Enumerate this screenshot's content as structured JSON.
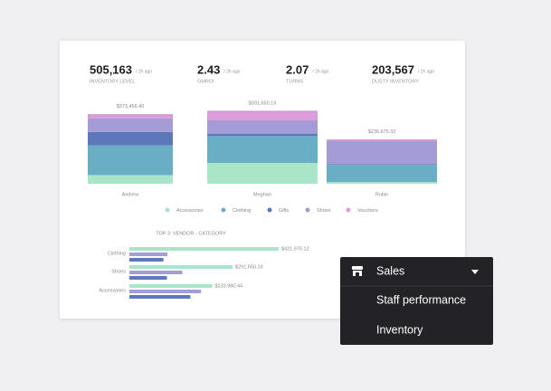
{
  "kpis": [
    {
      "value": "505,163",
      "time": "/ 2h ago",
      "label": "INVENTORY LEVEL"
    },
    {
      "value": "2.43",
      "time": "/ 2h ago",
      "label": "GMROI"
    },
    {
      "value": "2.07",
      "time": "/ 2h ago",
      "label": "TURNS"
    },
    {
      "value": "203,567",
      "time": "/ 2h ago",
      "label": "DUSTY INVENTORY"
    }
  ],
  "chart_data": [
    {
      "type": "stacked-bar",
      "categories": [
        "Andrew",
        "Meghan",
        "Robin"
      ],
      "totals": [
        373456.4,
        391650.19,
        236675.32
      ],
      "total_labels": [
        "$373,456.40",
        "$391,650.19",
        "$236,675.32"
      ],
      "series": [
        {
          "name": "Accessories",
          "color": "#a9e6c9",
          "values": [
            46700,
            112600,
            9300
          ]
        },
        {
          "name": "Clothing",
          "color": "#6aaec6",
          "values": [
            160800,
            146900,
            92800
          ]
        },
        {
          "name": "Gifts",
          "color": "#5c78b8",
          "values": [
            72600,
            9800,
            4600
          ]
        },
        {
          "name": "Shoes",
          "color": "#a39cd6",
          "values": [
            72600,
            73400,
            125300
          ]
        },
        {
          "name": "Vouchers",
          "color": "#dc9ddb",
          "values": [
            20756,
            48950,
            4675
          ]
        }
      ]
    },
    {
      "type": "hbar",
      "title": "TOP 3: VENDOR - CATEGORY",
      "categories": [
        "Clothing",
        "Shoes",
        "Accessories"
      ],
      "series": [
        {
          "color": "#a9e6c9",
          "values": [
            421970.12,
            291650.19,
            233980.44
          ],
          "value_labels": [
            "$421,970.12",
            "$291,650.19",
            "$233,980.44"
          ]
        },
        {
          "color": "#a39cd6",
          "values": [
            107600,
            149300,
            202400
          ]
        },
        {
          "color": "#5c78b8",
          "values": [
            96200,
            106200,
            172200
          ]
        }
      ]
    }
  ],
  "menu": {
    "title": "Sales",
    "items": [
      "Staff performance",
      "Inventory"
    ]
  }
}
